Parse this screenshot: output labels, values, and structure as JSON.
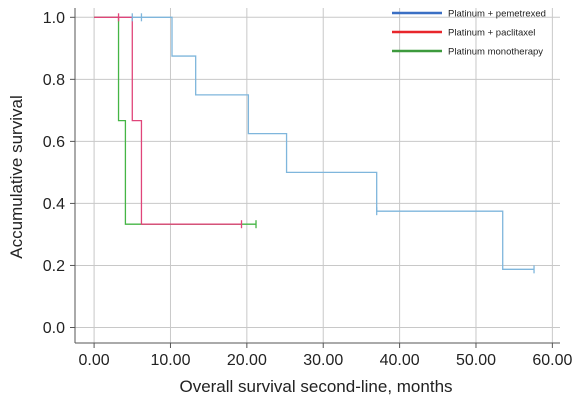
{
  "chart_data": {
    "type": "line",
    "subtype": "kaplan-meier step",
    "title": "",
    "xlabel": "Overall survival second-line, months",
    "ylabel": "Accumulative survival",
    "xlim": [
      -2.5,
      61
    ],
    "ylim": [
      -0.05,
      1.03
    ],
    "x_ticks": [
      0,
      10,
      20,
      30,
      40,
      50,
      60
    ],
    "x_tick_labels": [
      "0.00",
      "10.00",
      "20.00",
      "30.00",
      "40.00",
      "50.00",
      "60.00"
    ],
    "y_ticks": [
      0.0,
      0.2,
      0.4,
      0.6,
      0.8,
      1.0
    ],
    "y_tick_labels": [
      "0.0",
      "0.2",
      "0.4",
      "0.6",
      "0.8",
      "1.0"
    ],
    "grid": {
      "x": true,
      "y": true
    },
    "legend_position": "top-right",
    "series": [
      {
        "name": "Platinum + pemetrexed",
        "legend_color": "#3a6fc4",
        "line_color": "#7fb6dc",
        "steps": [
          [
            0,
            1.0
          ],
          [
            10.2,
            0.875
          ],
          [
            13.3,
            0.75
          ],
          [
            20.2,
            0.625
          ],
          [
            25.2,
            0.5
          ],
          [
            37.0,
            0.375
          ],
          [
            53.5,
            0.1875
          ]
        ],
        "end_x": 57.6,
        "censored": [
          [
            5.0,
            1.0
          ],
          [
            6.2,
            1.0
          ],
          [
            37.0,
            0.375
          ],
          [
            57.6,
            0.1875
          ]
        ]
      },
      {
        "name": "Platinum + paclitaxel",
        "legend_color": "#e8262b",
        "line_color": "#e0457a",
        "steps": [
          [
            0,
            1.0
          ],
          [
            5.0,
            0.667
          ],
          [
            6.2,
            0.333
          ]
        ],
        "end_x": 19.3,
        "censored": [
          [
            3.2,
            1.0
          ],
          [
            19.3,
            0.333
          ]
        ]
      },
      {
        "name": "Platinum monotherapy",
        "legend_color": "#3d9a3d",
        "line_color": "#45b545",
        "steps": [
          [
            0,
            1.0
          ],
          [
            3.2,
            0.667
          ],
          [
            4.1,
            0.333
          ]
        ],
        "end_x": 21.2,
        "censored": [
          [
            21.2,
            0.333
          ]
        ]
      }
    ]
  }
}
